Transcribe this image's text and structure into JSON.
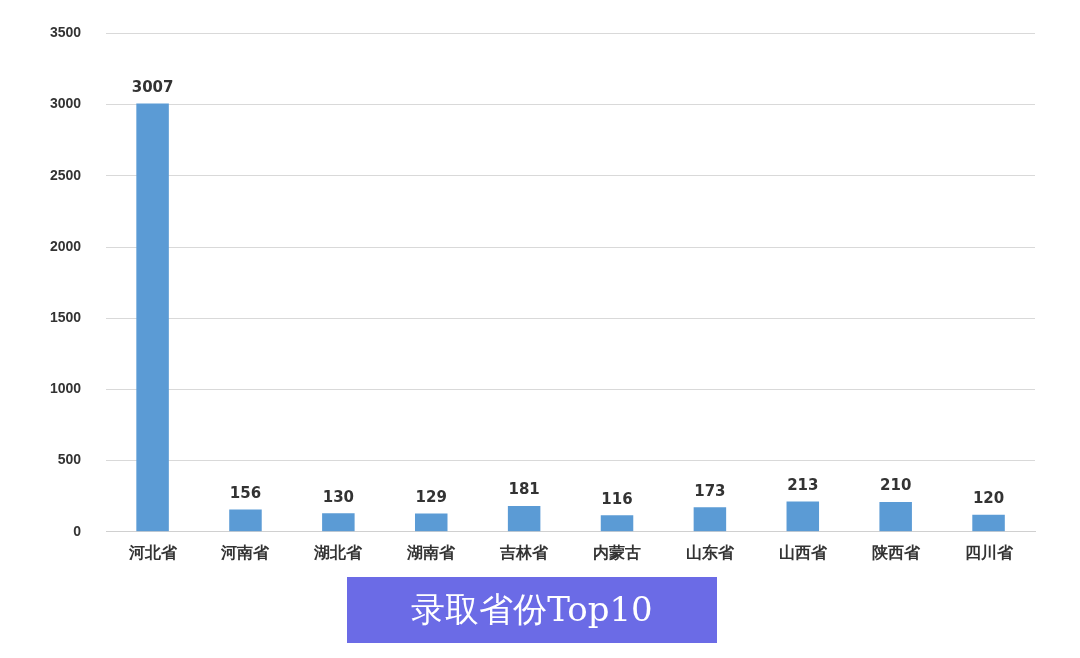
{
  "chart_data": {
    "type": "bar",
    "title": "录取省份Top10",
    "categories": [
      "河北省",
      "河南省",
      "湖北省",
      "湖南省",
      "吉林省",
      "内蒙古",
      "山东省",
      "山西省",
      "陕西省",
      "四川省"
    ],
    "values": [
      3007,
      156,
      130,
      129,
      181,
      116,
      173,
      213,
      210,
      120
    ],
    "color": "#5b9bd5",
    "ylim": [
      0,
      3500
    ],
    "yticks": [
      0,
      500,
      1000,
      1500,
      2000,
      2500,
      3000,
      3500
    ],
    "grid": "y",
    "data_labels": true,
    "legend": false
  }
}
